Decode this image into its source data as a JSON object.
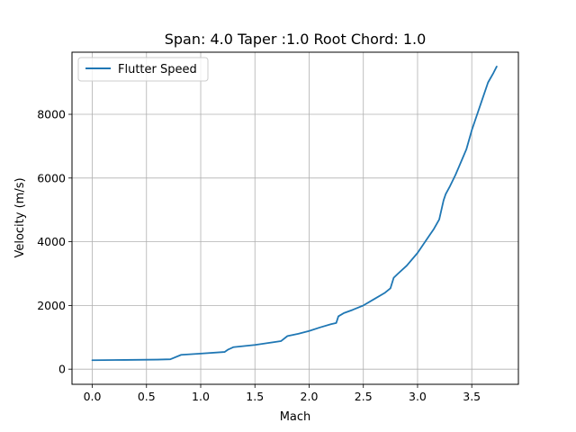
{
  "chart_data": {
    "type": "line",
    "title": "Span: 4.0 Taper :1.0 Root Chord: 1.0",
    "xlabel": "Mach",
    "ylabel": "Velocity (m/s)",
    "xlim": [
      -0.187,
      3.93
    ],
    "ylim": [
      -475,
      9950
    ],
    "xticks": [
      0.0,
      0.5,
      1.0,
      1.5,
      2.0,
      2.5,
      3.0,
      3.5
    ],
    "xtick_labels": [
      "0.0",
      "0.5",
      "1.0",
      "1.5",
      "2.0",
      "2.5",
      "3.0",
      "3.5"
    ],
    "yticks": [
      0,
      2000,
      4000,
      6000,
      8000
    ],
    "ytick_labels": [
      "0",
      "2000",
      "4000",
      "6000",
      "8000"
    ],
    "grid": true,
    "legend_position": "top-left",
    "series": [
      {
        "name": "Flutter Speed",
        "color": "#1f77b4",
        "x": [
          0.0,
          0.3,
          0.6,
          0.72,
          0.82,
          1.0,
          1.22,
          1.25,
          1.3,
          1.5,
          1.62,
          1.74,
          1.8,
          1.9,
          2.0,
          2.1,
          2.2,
          2.25,
          2.27,
          2.32,
          2.4,
          2.5,
          2.6,
          2.7,
          2.75,
          2.78,
          2.82,
          2.9,
          3.0,
          3.05,
          3.1,
          3.15,
          3.2,
          3.22,
          3.24,
          3.26,
          3.3,
          3.35,
          3.4,
          3.45,
          3.5,
          3.55,
          3.6,
          3.65,
          3.7,
          3.73
        ],
        "y": [
          280,
          290,
          300,
          310,
          450,
          490,
          540,
          610,
          690,
          760,
          820,
          880,
          1040,
          1110,
          1200,
          1310,
          1410,
          1450,
          1660,
          1760,
          1860,
          2000,
          2200,
          2400,
          2540,
          2870,
          3000,
          3250,
          3650,
          3900,
          4150,
          4400,
          4700,
          5000,
          5300,
          5500,
          5750,
          6100,
          6500,
          6900,
          7500,
          8000,
          8500,
          9000,
          9300,
          9500
        ]
      }
    ]
  }
}
